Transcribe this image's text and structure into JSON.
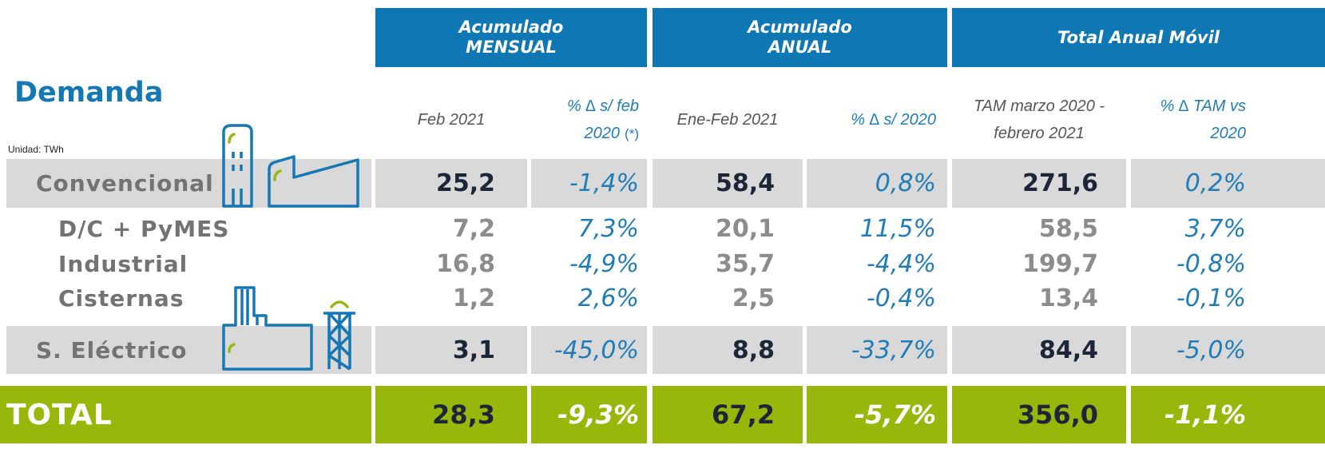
{
  "title": "Demanda",
  "unit": "Unidad: TWh",
  "groups": [
    {
      "lines": [
        "Acumulado",
        "MENSUAL"
      ]
    },
    {
      "lines": [
        "Acumulado",
        "ANUAL"
      ]
    },
    {
      "lines": [
        "Total Anual Móvil"
      ]
    }
  ],
  "subheaders": [
    {
      "lines": [
        "Feb 2021"
      ]
    },
    {
      "lines": [
        "% ∆ s/ feb",
        "2020"
      ],
      "note": "(*)"
    },
    {
      "lines": [
        "Ene-Feb 2021"
      ]
    },
    {
      "lines": [
        "% ∆ s/ 2020"
      ]
    },
    {
      "lines": [
        "TAM marzo 2020 -",
        "febrero 2021"
      ]
    },
    {
      "lines": [
        "%  ∆ TAM vs",
        "2020"
      ]
    }
  ],
  "rows": [
    {
      "label": "Convencional",
      "values": [
        "25,2",
        "-1,4%",
        "58,4",
        "0,8%",
        "271,6",
        "0,2%"
      ]
    },
    {
      "label": "D/C + PyMES",
      "values": [
        "7,2",
        "7,3%",
        "20,1",
        "11,5%",
        "58,5",
        "3,7%"
      ]
    },
    {
      "label": "Industrial",
      "values": [
        "16,8",
        "-4,9%",
        "35,7",
        "-4,4%",
        "199,7",
        "-0,8%"
      ]
    },
    {
      "label": "Cisternas",
      "values": [
        "1,2",
        "2,6%",
        "2,5",
        "-0,4%",
        "13,4",
        "-0,1%"
      ]
    },
    {
      "label": "S. Eléctrico",
      "values": [
        "3,1",
        "-45,0%",
        "8,8",
        "-33,7%",
        "84,4",
        "-5,0%"
      ]
    }
  ],
  "total": {
    "label": "TOTAL",
    "values": [
      "28,3",
      "-9,3%",
      "67,2",
      "-5,7%",
      "356,0",
      "-1,1%"
    ]
  }
}
